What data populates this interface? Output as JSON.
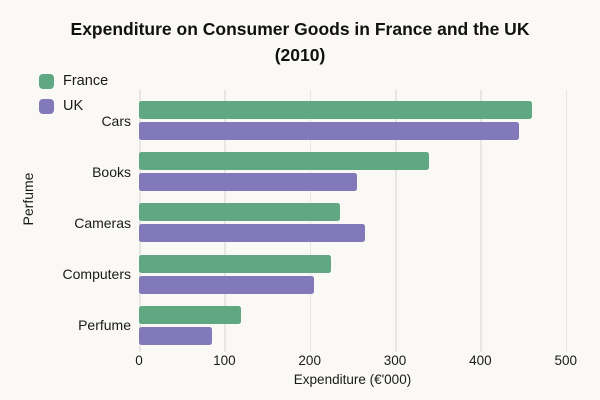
{
  "chart_data": {
    "type": "bar",
    "orientation": "horizontal",
    "title": "Expenditure on Consumer Goods in France and the UK (2010)",
    "title_lines": [
      "Expenditure on Consumer Goods in France and the UK",
      "(2010)"
    ],
    "xlabel": "Expenditure (€'000)",
    "ylabel": "Perfume",
    "categories": [
      "Cars",
      "Books",
      "Cameras",
      "Computers",
      "Perfume"
    ],
    "series": [
      {
        "name": "France",
        "color": "#60A882",
        "values": [
          460,
          340,
          235,
          225,
          120
        ]
      },
      {
        "name": "UK",
        "color": "#8179B9",
        "values": [
          445,
          255,
          265,
          205,
          85
        ]
      }
    ],
    "ticks": [
      0,
      100,
      200,
      300,
      400,
      500
    ],
    "xlim": [
      0,
      500
    ],
    "grid": true,
    "legend_position": "top-left",
    "colors": {
      "background": "#FAF9F6",
      "gridline": "#E8E6E2",
      "text": "#1A1A1A"
    }
  }
}
